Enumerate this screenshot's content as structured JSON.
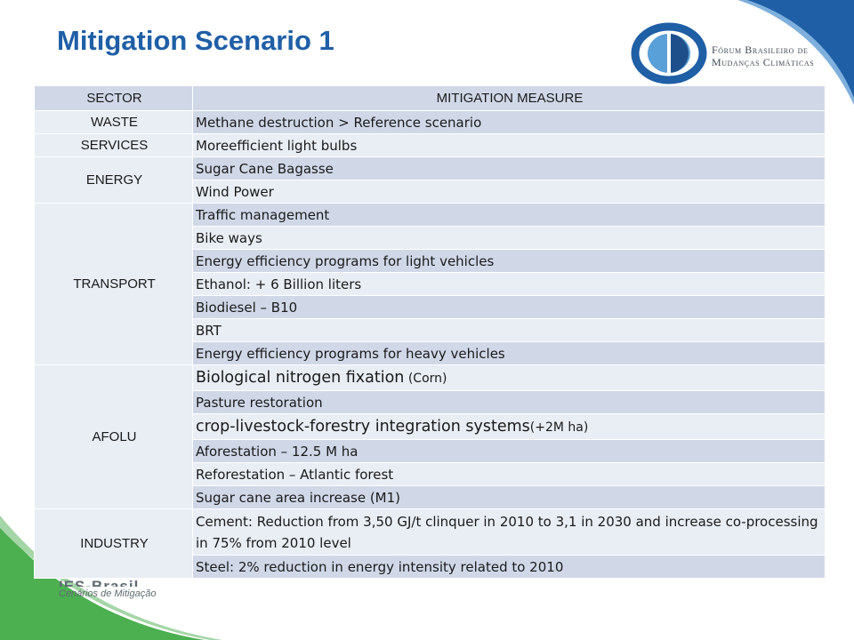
{
  "slide": {
    "title": "Mitigation Scenario 1",
    "logo": {
      "line1": "Fórum Brasileiro de",
      "line2": "Mudanças Climáticas"
    },
    "footer_logo": {
      "big": "IES-Brasil",
      "small": "Cenários de Mitigação"
    },
    "colors": {
      "title": "#1f5fa6",
      "header_row": "#d0d8e8",
      "row_light": "#e9edf4",
      "corner_blue": "#1f5fa6",
      "corner_green": "#4caf50"
    }
  },
  "table": {
    "headers": [
      "SECTOR",
      "MITIGATION MEASURE"
    ],
    "sectors": [
      "WASTE",
      "SERVICES",
      "ENERGY",
      "TRANSPORT",
      "AFOLU",
      "INDUSTRY"
    ],
    "rows": {
      "waste_1": "Methane destruction > Reference scenario",
      "services_1": "Moreefficient light bulbs",
      "energy_1": "Sugar Cane Bagasse",
      "energy_2": "Wind Power",
      "transport_1": "Traffic management",
      "transport_2": "Bike ways",
      "transport_3": "Energy efficiency programs for light vehicles",
      "transport_4": "Ethanol:  + 6 Billion liters",
      "transport_5": "Biodiesel – B10",
      "transport_6": "BRT",
      "transport_7": "Energy efficiency programs for heavy vehicles",
      "afolu_1_main": "Biological nitrogen fixation",
      "afolu_1_note": " (Corn)",
      "afolu_2": "Pasture restoration",
      "afolu_3_main": "crop-livestock-forestry integration systems",
      "afolu_3_note": "(+2M ha)",
      "afolu_4": "Aforestation – 12.5 M ha",
      "afolu_5": "Reforestation – Atlantic forest",
      "afolu_6": "Sugar cane area increase (M1)",
      "industry_1": "Cement: Reduction from 3,50 GJ/t clinquer in 2010 to 3,1 in 2030 and increase co-processing in 75% from 2010 level",
      "industry_2": "Steel: 2% reduction in energy intensity related to 2010"
    }
  }
}
